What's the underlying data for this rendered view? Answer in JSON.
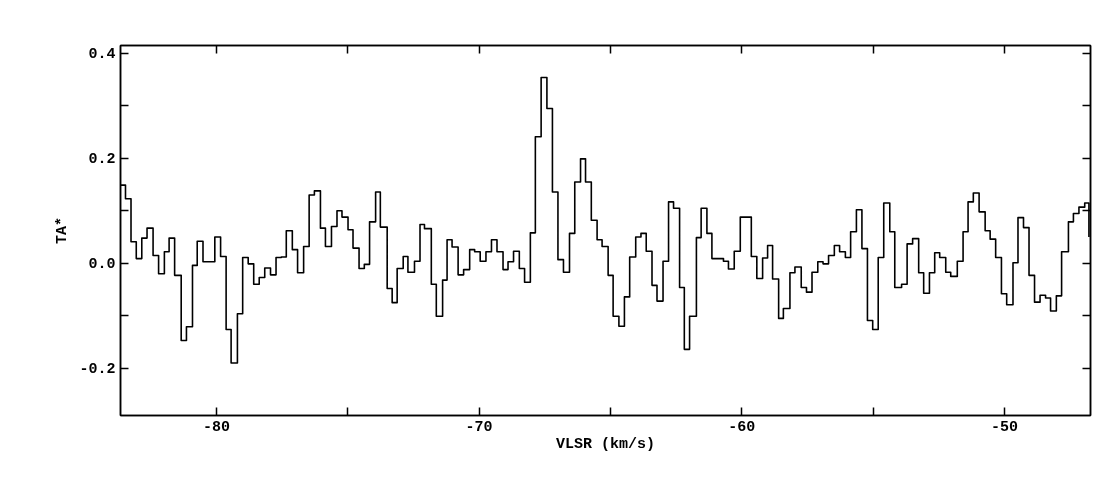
{
  "chart_data": {
    "type": "step",
    "xlabel": "VLSR (km/s)",
    "ylabel": "TA*",
    "xlim": [
      -83.65,
      -46.73
    ],
    "ylim": [
      -0.29,
      0.415
    ],
    "xticks": [
      -80,
      {
        "value": -75,
        "label": null
      },
      -70,
      {
        "value": -65,
        "label": null
      },
      -60,
      {
        "value": -55,
        "label": null
      },
      -50
    ],
    "yticks": [
      {
        "value": -0.2,
        "label": "-0.2"
      },
      {
        "value": -0.1,
        "label": null
      },
      {
        "value": 0,
        "label": "0.0"
      },
      {
        "value": 0.1,
        "label": null
      },
      {
        "value": 0.2,
        "label": "0.2"
      },
      {
        "value": 0.3,
        "label": null
      },
      {
        "value": 0.4,
        "label": "0.4"
      }
    ],
    "series": [
      {
        "color": "#000000",
        "x": [
          -83.63,
          -83.46,
          -83.25,
          -83.05,
          -82.84,
          -82.64,
          -82.41,
          -82.2,
          -81.98,
          -81.8,
          -81.59,
          -81.34,
          -81.14,
          -80.91,
          -80.73,
          -80.51,
          -80.06,
          -79.84,
          -79.63,
          -79.44,
          -79.2,
          -79.0,
          -78.79,
          -78.58,
          -78.37,
          -78.16,
          -77.94,
          -77.73,
          -77.53,
          -77.34,
          -77.11,
          -76.91,
          -76.68,
          -76.47,
          -76.27,
          -76.04,
          -75.85,
          -75.62,
          -75.41,
          -75.22,
          -74.99,
          -74.8,
          -74.57,
          -74.37,
          -74.17,
          -73.94,
          -73.76,
          -73.5,
          -73.31,
          -73.12,
          -72.89,
          -72.71,
          -72.46,
          -72.25,
          -72.08,
          -71.82,
          -71.63,
          -71.39,
          -71.22,
          -71.03,
          -70.8,
          -70.59,
          -70.36,
          -70.17,
          -69.96,
          -69.74,
          -69.53,
          -69.32,
          -69.09,
          -68.9,
          -68.69,
          -68.47,
          -68.27,
          -68.05,
          -67.86,
          -67.64,
          -67.42,
          -67.21,
          -67.0,
          -66.79,
          -66.56,
          -66.36,
          -66.14,
          -65.95,
          -65.73,
          -65.51,
          -65.32,
          -65.09,
          -64.9,
          -64.68,
          -64.47,
          -64.27,
          -64.04,
          -63.84,
          -63.64,
          -63.42,
          -63.23,
          -63.0,
          -62.79,
          -62.6,
          -62.37,
          -62.19,
          -61.99,
          -61.73,
          -61.55,
          -61.33,
          -61.14,
          -60.7,
          -60.51,
          -60.29,
          -60.06,
          -59.64,
          -59.43,
          -59.21,
          -59.02,
          -58.83,
          -58.6,
          -58.42,
          -58.17,
          -57.98,
          -57.74,
          -57.54,
          -57.33,
          -57.11,
          -56.91,
          -56.7,
          -56.48,
          -56.28,
          -56.06,
          -55.86,
          -55.64,
          -55.43,
          -55.22,
          -55.02,
          -54.81,
          -54.6,
          -54.37,
          -54.18,
          -53.92,
          -53.71,
          -53.5,
          -53.27,
          -53.08,
          -52.86,
          -52.66,
          -52.47,
          -52.24,
          -52.05,
          -51.8,
          -51.58,
          -51.39,
          -51.19,
          -50.97,
          -50.74,
          -50.55,
          -50.34,
          -50.12,
          -49.92,
          -49.68,
          -49.49,
          -49.28,
          -49.07,
          -48.86,
          -48.65,
          -48.44,
          -48.25,
          -48.03,
          -47.83,
          -47.57,
          -47.38,
          -47.17,
          -46.95,
          -46.79
        ],
        "values": [
          0.149,
          0.123,
          0.041,
          0.009,
          0.048,
          0.067,
          0.015,
          -0.02,
          0.022,
          0.048,
          -0.023,
          -0.147,
          -0.121,
          -0.004,
          0.042,
          0.003,
          0.05,
          0.013,
          -0.126,
          -0.19,
          -0.096,
          0.011,
          -0.001,
          -0.04,
          -0.027,
          -0.009,
          -0.022,
          0.011,
          0.012,
          0.062,
          0.026,
          -0.018,
          0.032,
          0.13,
          0.138,
          0.067,
          0.032,
          0.07,
          0.1,
          0.088,
          0.064,
          0.029,
          -0.01,
          -0.002,
          0.079,
          0.136,
          0.069,
          -0.048,
          -0.075,
          -0.01,
          0.013,
          -0.017,
          0.004,
          0.074,
          0.066,
          -0.04,
          -0.101,
          -0.032,
          0.045,
          0.031,
          -0.022,
          -0.012,
          0.026,
          0.022,
          0.004,
          0.022,
          0.045,
          0.022,
          -0.012,
          0.003,
          0.023,
          -0.01,
          -0.036,
          0.058,
          0.241,
          0.354,
          0.295,
          0.136,
          0.007,
          -0.017,
          0.057,
          0.155,
          0.199,
          0.155,
          0.082,
          0.045,
          0.032,
          -0.023,
          -0.101,
          -0.12,
          -0.064,
          0.012,
          0.05,
          0.057,
          0.023,
          -0.042,
          -0.072,
          0.004,
          0.117,
          0.105,
          -0.046,
          -0.164,
          -0.101,
          0.049,
          0.105,
          0.057,
          0.009,
          0.004,
          -0.011,
          0.023,
          0.088,
          0.013,
          -0.029,
          0.01,
          0.034,
          -0.03,
          -0.105,
          -0.086,
          -0.018,
          -0.007,
          -0.046,
          -0.055,
          -0.017,
          0.003,
          -0.001,
          0.015,
          0.034,
          0.022,
          0.011,
          0.06,
          0.102,
          0.028,
          -0.109,
          -0.126,
          0.011,
          0.115,
          0.06,
          -0.046,
          -0.04,
          0.037,
          0.047,
          -0.018,
          -0.057,
          -0.018,
          0.02,
          0.011,
          -0.017,
          -0.025,
          0.004,
          0.06,
          0.117,
          0.134,
          0.098,
          0.062,
          0.046,
          0.011,
          -0.058,
          -0.079,
          0.001,
          0.087,
          0.068,
          -0.023,
          -0.074,
          -0.061,
          -0.066,
          -0.091,
          -0.062,
          0.022,
          0.079,
          0.095,
          0.107,
          0.115,
          0.05
        ]
      }
    ]
  }
}
